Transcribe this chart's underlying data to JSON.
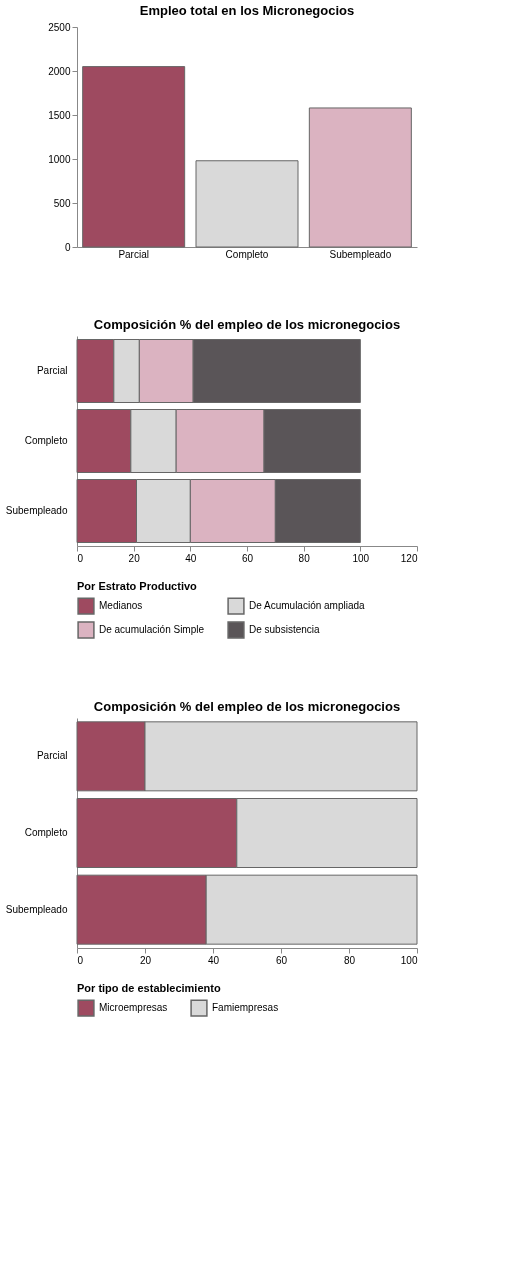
{
  "chart_data": [
    {
      "type": "bar",
      "title": "Empleo total en los Micronegocios",
      "categories": [
        "Parcial",
        "Completo",
        "Subempleado"
      ],
      "values": [
        2050,
        980,
        1580
      ],
      "colors": [
        "#9e4a60",
        "#d9d9d9",
        "#dbb3c1"
      ],
      "ylim": [
        0,
        2500
      ],
      "yticks": [
        0,
        500,
        1000,
        1500,
        2000,
        2500
      ],
      "grid": false
    },
    {
      "type": "bar",
      "orientation": "horizontal",
      "stacked": true,
      "title": "Composición % del empleo de los micronegocios",
      "categories": [
        "Parcial",
        "Completo",
        "Subempleado"
      ],
      "legend_title": "Por Estrato Productivo",
      "legend": "bottom",
      "xlim": [
        0,
        120
      ],
      "xticks": [
        0,
        20,
        40,
        60,
        80,
        100,
        120
      ],
      "grid": false,
      "series": [
        {
          "name": "Medianos",
          "color": "#9e4a60",
          "values": [
            13,
            19,
            21
          ]
        },
        {
          "name": "De Acumulación ampliada",
          "color": "#d9d9d9",
          "values": [
            9,
            16,
            19
          ]
        },
        {
          "name": "De acumulación Simple",
          "color": "#dbb3c1",
          "values": [
            19,
            31,
            30
          ]
        },
        {
          "name": "De subsistencia",
          "color": "#5a5558",
          "values": [
            59,
            34,
            30
          ]
        }
      ]
    },
    {
      "type": "bar",
      "orientation": "horizontal",
      "stacked": true,
      "title": "Composición % del empleo de los micronegocios",
      "categories": [
        "Parcial",
        "Completo",
        "Subempleado"
      ],
      "legend_title": "Por tipo de establecimiento",
      "legend": "bottom",
      "xlim": [
        0,
        100
      ],
      "xticks": [
        0,
        20,
        40,
        60,
        80,
        100
      ],
      "grid": false,
      "series": [
        {
          "name": "Microempresas",
          "color": "#9e4a60",
          "values": [
            20,
            47,
            38
          ]
        },
        {
          "name": "Famiempresas",
          "color": "#d9d9d9",
          "values": [
            80,
            53,
            62
          ]
        }
      ]
    }
  ]
}
